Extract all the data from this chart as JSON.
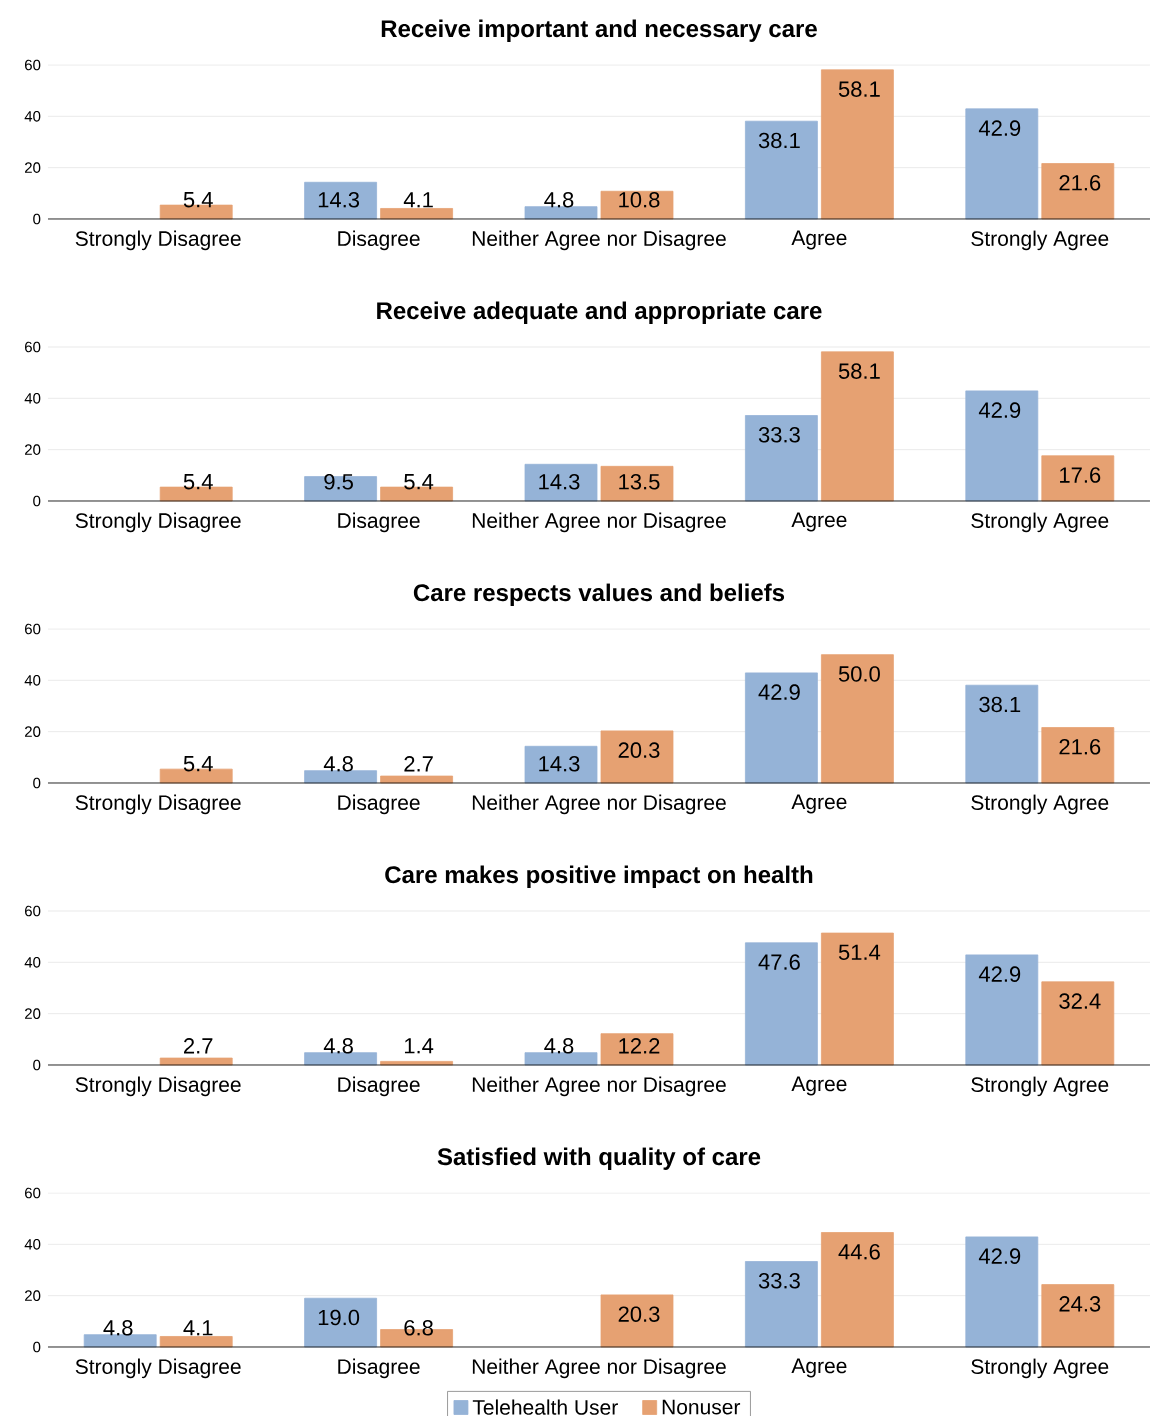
{
  "chart_data": [
    {
      "type": "bar",
      "title": "Receive important and necessary care",
      "categories": [
        "Strongly Disagree",
        "Disagree",
        "Neither Agree nor Disagree",
        "Agree",
        "Strongly Agree"
      ],
      "ylim": [
        0,
        60
      ],
      "yticks": [
        0,
        20,
        40,
        60
      ],
      "grid": "y",
      "series": [
        {
          "color": "#95b3d7",
          "values": [
            null,
            14.3,
            4.8,
            38.1,
            42.9
          ],
          "value_labels": [
            null,
            "14.3",
            "4.8",
            "38.1",
            "42.9"
          ]
        },
        {
          "color": "#e6a172",
          "values": [
            5.4,
            4.1,
            10.8,
            58.1,
            21.6
          ],
          "value_labels": [
            "5.4",
            "4.1",
            "10.8",
            "58.1",
            "21.6"
          ]
        }
      ]
    },
    {
      "type": "bar",
      "title": "Receive adequate and appropriate care",
      "categories": [
        "Strongly Disagree",
        "Disagree",
        "Neither Agree nor Disagree",
        "Agree",
        "Strongly Agree"
      ],
      "ylim": [
        0,
        60
      ],
      "yticks": [
        0,
        20,
        40,
        60
      ],
      "grid": "y",
      "series": [
        {
          "color": "#95b3d7",
          "values": [
            null,
            9.5,
            14.3,
            33.3,
            42.9
          ],
          "value_labels": [
            null,
            "9.5",
            "14.3",
            "33.3",
            "42.9"
          ]
        },
        {
          "color": "#e6a172",
          "values": [
            5.4,
            5.4,
            13.5,
            58.1,
            17.6
          ],
          "value_labels": [
            "5.4",
            "5.4",
            "13.5",
            "58.1",
            "17.6"
          ]
        }
      ]
    },
    {
      "type": "bar",
      "title": "Care respects values and beliefs",
      "categories": [
        "Strongly Disagree",
        "Disagree",
        "Neither Agree nor Disagree",
        "Agree",
        "Strongly Agree"
      ],
      "ylim": [
        0,
        60
      ],
      "yticks": [
        0,
        20,
        40,
        60
      ],
      "grid": "y",
      "series": [
        {
          "color": "#95b3d7",
          "values": [
            null,
            4.8,
            14.3,
            42.9,
            38.1
          ],
          "value_labels": [
            null,
            "4.8",
            "14.3",
            "42.9",
            "38.1"
          ]
        },
        {
          "color": "#e6a172",
          "values": [
            5.4,
            2.7,
            20.3,
            50.0,
            21.6
          ],
          "value_labels": [
            "5.4",
            "2.7",
            "20.3",
            "50.0",
            "21.6"
          ]
        }
      ]
    },
    {
      "type": "bar",
      "title": "Care makes positive impact on health",
      "categories": [
        "Strongly Disagree",
        "Disagree",
        "Neither Agree nor Disagree",
        "Agree",
        "Strongly Agree"
      ],
      "ylim": [
        0,
        60
      ],
      "yticks": [
        0,
        20,
        40,
        60
      ],
      "grid": "y",
      "series": [
        {
          "color": "#95b3d7",
          "values": [
            null,
            4.8,
            4.8,
            47.6,
            42.9
          ],
          "value_labels": [
            null,
            "4.8",
            "4.8",
            "47.6",
            "42.9"
          ]
        },
        {
          "color": "#e6a172",
          "values": [
            2.7,
            1.4,
            12.2,
            51.4,
            32.4
          ],
          "value_labels": [
            "2.7",
            "1.4",
            "12.2",
            "51.4",
            "32.4"
          ]
        }
      ]
    },
    {
      "type": "bar",
      "title": "Satisfied with quality of care",
      "categories": [
        "Strongly Disagree",
        "Disagree",
        "Neither Agree nor Disagree",
        "Agree",
        "Strongly Agree"
      ],
      "ylim": [
        0,
        60
      ],
      "yticks": [
        0,
        20,
        40,
        60
      ],
      "grid": "y",
      "legend": "bottom",
      "series": [
        {
          "name": "Telehealth User",
          "color": "#95b3d7",
          "values": [
            4.8,
            19.0,
            null,
            33.3,
            42.9
          ],
          "value_labels": [
            "4.8",
            "19.0",
            null,
            "33.3",
            "42.9"
          ]
        },
        {
          "name": "Nonuser",
          "color": "#e6a172",
          "values": [
            4.1,
            6.8,
            20.3,
            44.6,
            24.3
          ],
          "value_labels": [
            "4.1",
            "6.8",
            "20.3",
            "44.6",
            "24.3"
          ]
        }
      ]
    }
  ]
}
